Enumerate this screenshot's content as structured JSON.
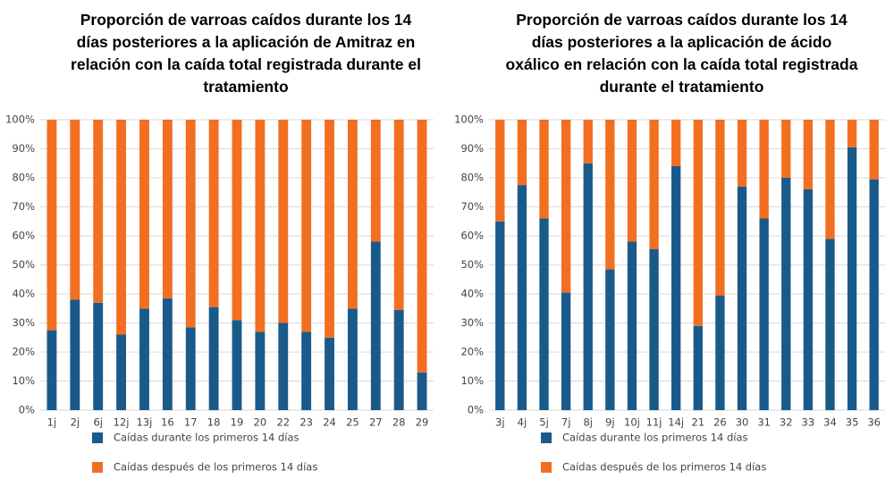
{
  "chart_data": [
    {
      "type": "stacked-bar",
      "title": "Proporción de varroas caídos durante los 14 días posteriores a la aplicación de Amitraz en relación con la caída total registrada durante el tratamiento",
      "categories": [
        "1j",
        "2j",
        "6j",
        "12j",
        "13j",
        "16",
        "17",
        "18",
        "19",
        "20",
        "22",
        "23",
        "24",
        "25",
        "27",
        "28",
        "29"
      ],
      "series": [
        {
          "name": "Caídas durante los primeros 14 días",
          "color": "#1a5a8a",
          "values": [
            27.5,
            38,
            37,
            26,
            35,
            38.5,
            28.5,
            35.5,
            31,
            27,
            30,
            27,
            25,
            35,
            58,
            34.5,
            13
          ]
        },
        {
          "name": "Caídas después de los primeros 14 días",
          "color": "#f26f21",
          "values": [
            72.5,
            62,
            63,
            74,
            65,
            61.5,
            71.5,
            64.5,
            69,
            73,
            70,
            73,
            75,
            65,
            42,
            65.5,
            87
          ]
        }
      ],
      "ylim": [
        0,
        100
      ],
      "yticks": [
        {
          "value": 0,
          "label": "0%"
        },
        {
          "value": 10,
          "label": "10%"
        },
        {
          "value": 20,
          "label": "20%"
        },
        {
          "value": 30,
          "label": "30%"
        },
        {
          "value": 40,
          "label": "40%"
        },
        {
          "value": 50,
          "label": "50%"
        },
        {
          "value": 60,
          "label": "60%"
        },
        {
          "value": 70,
          "label": "70%"
        },
        {
          "value": 80,
          "label": "80%"
        },
        {
          "value": 90,
          "label": "90%"
        },
        {
          "value": 100,
          "label": "100%"
        }
      ],
      "grid": true
    },
    {
      "type": "stacked-bar",
      "title": "Proporción de varroas caídos durante los 14 días posteriores a la aplicación de ácido oxálico en relación con la caída total registrada durante el tratamiento",
      "categories": [
        "3j",
        "4j",
        "5j",
        "7j",
        "8j",
        "9j",
        "10j",
        "11j",
        "14j",
        "21",
        "26",
        "30",
        "31",
        "32",
        "33",
        "34",
        "35",
        "36"
      ],
      "series": [
        {
          "name": "Caídas durante los primeros 14 días",
          "color": "#1a5a8a",
          "values": [
            65,
            77.5,
            66,
            40.5,
            85,
            48.5,
            58,
            55.5,
            84,
            29,
            39.5,
            77,
            66,
            80,
            76,
            59,
            90.5,
            79.5
          ]
        },
        {
          "name": "Caídas después de los primeros 14 días",
          "color": "#f26f21",
          "values": [
            35,
            22.5,
            34,
            59.5,
            15,
            51.5,
            42,
            44.5,
            16,
            71,
            60.5,
            23,
            34,
            20,
            24,
            41,
            9.5,
            20.5
          ]
        }
      ],
      "ylim": [
        0,
        100
      ],
      "yticks": [
        {
          "value": 0,
          "label": "0%"
        },
        {
          "value": 10,
          "label": "10%"
        },
        {
          "value": 20,
          "label": "20%"
        },
        {
          "value": 30,
          "label": "30%"
        },
        {
          "value": 40,
          "label": "40%"
        },
        {
          "value": 50,
          "label": "50%"
        },
        {
          "value": 60,
          "label": "60%"
        },
        {
          "value": 70,
          "label": "70%"
        },
        {
          "value": 80,
          "label": "80%"
        },
        {
          "value": 90,
          "label": "90%"
        },
        {
          "value": 100,
          "label": "100%"
        }
      ],
      "grid": true
    }
  ]
}
